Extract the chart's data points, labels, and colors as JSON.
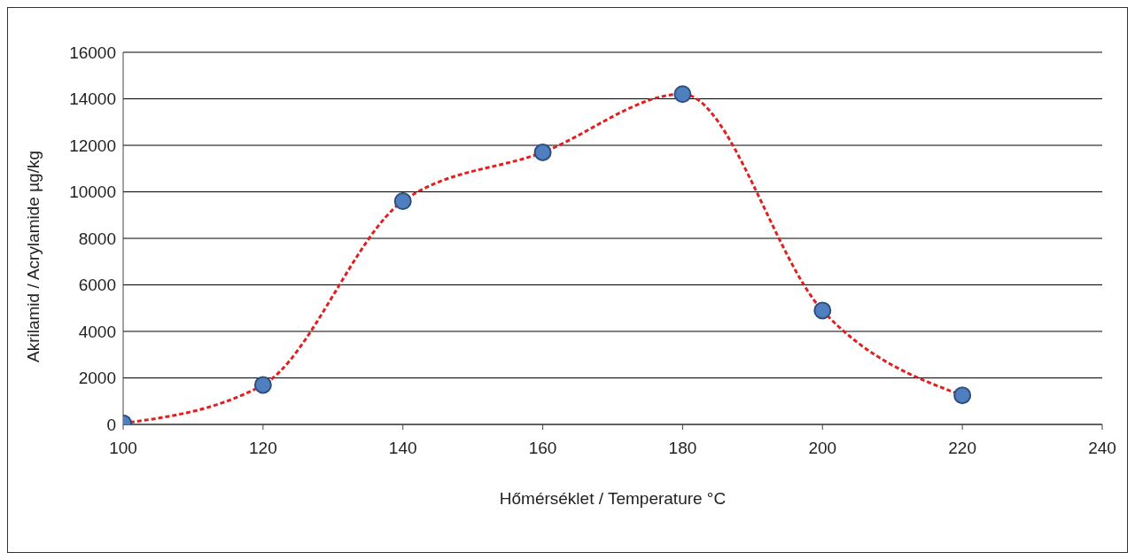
{
  "chart_data": {
    "type": "line",
    "xlabel": "Hőmérséklet / Temperature °C",
    "ylabel": "Akrilamid / Acrylamide µg/kg",
    "x": [
      100,
      120,
      140,
      160,
      180,
      200,
      220
    ],
    "series": [
      {
        "color": "#e02020",
        "colors": [
          "#4f7fbf",
          "#4f7fbf",
          "#4f7fbf",
          "#4f7fbf",
          "#4f7fbf",
          "#4f7fbf",
          "#4f7fbf"
        ],
        "values": [
          50,
          1700,
          9600,
          11700,
          14200,
          4900,
          1250
        ]
      }
    ],
    "xlim": [
      100,
      240
    ],
    "xticks": [
      100,
      120,
      140,
      160,
      180,
      200,
      220,
      240
    ],
    "ylim": [
      0,
      16000
    ],
    "yticks": [
      0,
      2000,
      4000,
      6000,
      8000,
      10000,
      12000,
      14000,
      16000
    ],
    "grid": "y",
    "legend": false,
    "marker": "circle",
    "line_style": "dashed"
  }
}
